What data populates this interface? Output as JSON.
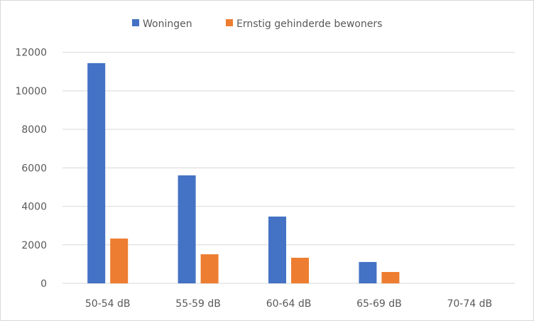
{
  "chart_data": {
    "type": "bar",
    "categories": [
      "50-54 dB",
      "55-59 dB",
      "60-64 dB",
      "65-69 dB",
      "70-74 dB"
    ],
    "series": [
      {
        "name": "Woningen",
        "color": "#4472C4",
        "values": [
          11440,
          5610,
          3470,
          1110,
          0
        ]
      },
      {
        "name": "Ernstig gehinderde bewoners",
        "color": "#ED7D31",
        "values": [
          2330,
          1510,
          1330,
          590,
          0
        ]
      }
    ],
    "yticks": [
      "0",
      "2000",
      "4000",
      "6000",
      "8000",
      "10000",
      "12000"
    ],
    "ylim": [
      0,
      12000
    ],
    "grid": true,
    "legend_position": "top"
  }
}
